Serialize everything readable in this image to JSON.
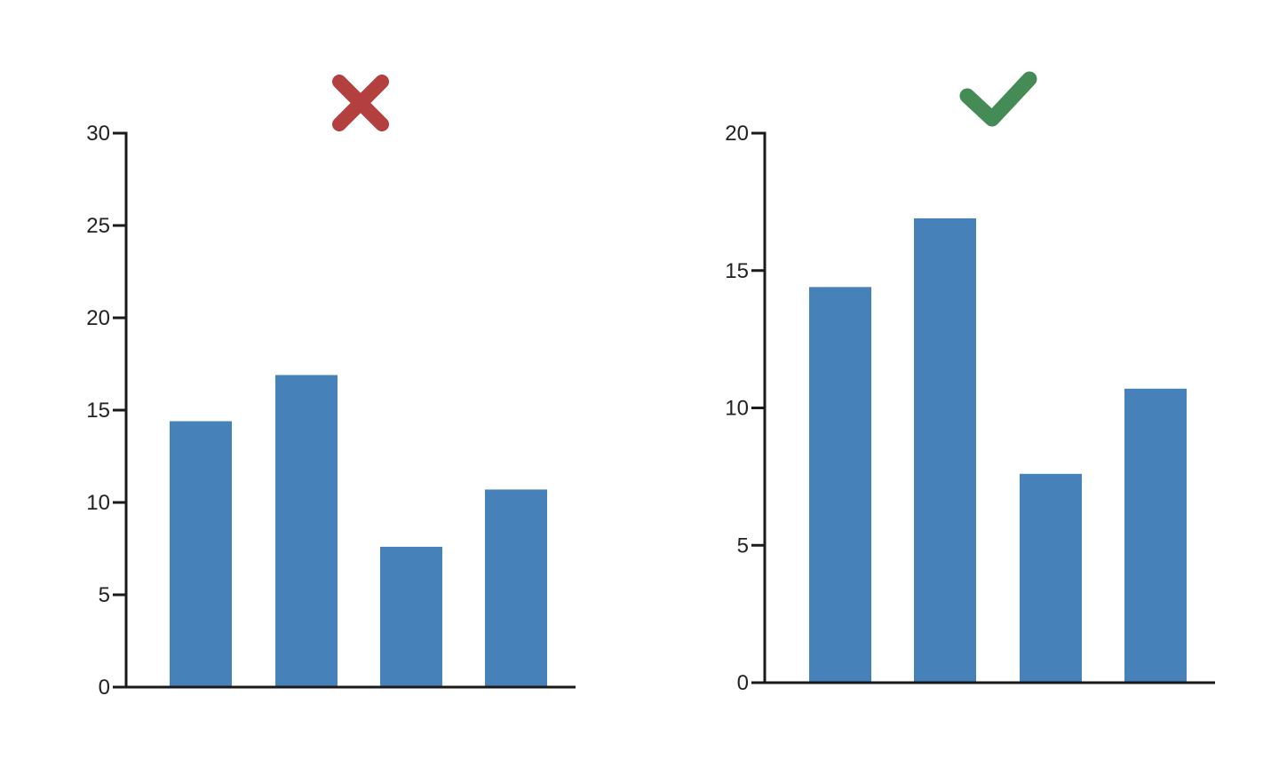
{
  "colors": {
    "bar": "#4682B9",
    "axis": "#1a1a1a",
    "bad_mark": "#B33F3F",
    "good_mark": "#458B55"
  },
  "chart_data": [
    {
      "type": "bar",
      "marker_icon": "cross-icon",
      "categories": [
        "",
        "",
        "",
        ""
      ],
      "values": [
        14.4,
        16.9,
        7.6,
        10.7
      ],
      "ylim": [
        0,
        30
      ],
      "yticks": [
        0,
        5,
        10,
        15,
        20,
        25,
        30
      ],
      "ytick_labels": [
        "0",
        "5",
        "10",
        "15",
        "20",
        "25",
        "30"
      ],
      "grid": false,
      "title": "",
      "xlabel": "",
      "ylabel": ""
    },
    {
      "type": "bar",
      "marker_icon": "checkmark-icon",
      "categories": [
        "",
        "",
        "",
        ""
      ],
      "values": [
        14.4,
        16.9,
        7.6,
        10.7
      ],
      "ylim": [
        0,
        20
      ],
      "yticks": [
        0,
        5,
        10,
        15,
        20
      ],
      "ytick_labels": [
        "0",
        "5",
        "10",
        "15",
        "20"
      ],
      "grid": false,
      "title": "",
      "xlabel": "",
      "ylabel": ""
    }
  ]
}
